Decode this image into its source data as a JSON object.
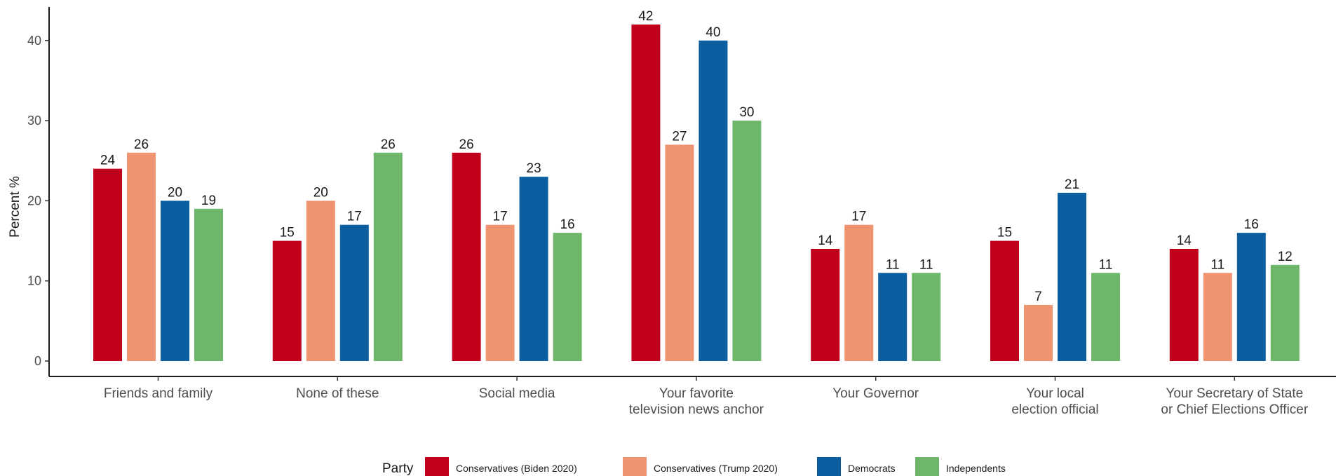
{
  "chart_data": {
    "type": "bar",
    "ylabel": "Percent %",
    "xlabel": "",
    "ylim": [
      0,
      42
    ],
    "yticks": [
      0,
      10,
      20,
      30,
      40
    ],
    "grid": false,
    "categories": [
      [
        "Friends and family"
      ],
      [
        "None of these"
      ],
      [
        "Social media"
      ],
      [
        "Your favorite",
        "television news anchor"
      ],
      [
        "Your Governor"
      ],
      [
        "Your local",
        "election official"
      ],
      [
        "Your Secretary of State",
        "or Chief Elections Officer"
      ]
    ],
    "series": [
      {
        "name": "Conservatives (Biden 2020)",
        "color": "#c0001a",
        "values": [
          24,
          15,
          26,
          42,
          14,
          15,
          14
        ]
      },
      {
        "name": "Conservatives (Trump 2020)",
        "color": "#ef9470",
        "values": [
          26,
          20,
          17,
          27,
          17,
          7,
          11
        ]
      },
      {
        "name": "Democrats",
        "color": "#0b5ea0",
        "values": [
          20,
          17,
          23,
          40,
          11,
          21,
          16
        ]
      },
      {
        "name": "Independents",
        "color": "#6db66a",
        "values": [
          19,
          26,
          16,
          30,
          11,
          11,
          12
        ]
      }
    ],
    "legend": {
      "title": "Party",
      "position": "bottom"
    }
  }
}
